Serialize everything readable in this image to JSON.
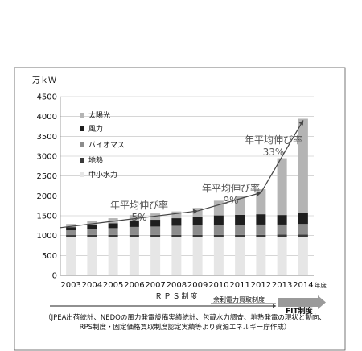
{
  "chart_data": {
    "type": "bar",
    "stacked": true,
    "title": "",
    "ylabel": "万ｋＷ",
    "xlabel_suffix": "年度",
    "ylim": [
      0,
      4500
    ],
    "yticks": [
      0,
      500,
      1000,
      1500,
      2000,
      2500,
      3000,
      3500,
      4000,
      4500
    ],
    "grid": true,
    "legend_position": "top-left (inside plot)",
    "categories": [
      "2003",
      "2004",
      "2005",
      "2006",
      "2007",
      "2008",
      "2009",
      "2010",
      "2011",
      "2012",
      "2013",
      "2014"
    ],
    "series": [
      {
        "name": "中小水力",
        "color": "#e6e6e6",
        "values": [
          960,
          965,
          965,
          965,
          965,
          965,
          965,
          965,
          965,
          965,
          970,
          970
        ]
      },
      {
        "name": "地熱",
        "color": "#3a3a3a",
        "values": [
          53,
          53,
          53,
          53,
          53,
          53,
          53,
          53,
          53,
          53,
          53,
          53
        ]
      },
      {
        "name": "バイオマス",
        "color": "#8c8c8c",
        "values": [
          120,
          140,
          170,
          200,
          210,
          230,
          240,
          250,
          255,
          260,
          255,
          270
        ]
      },
      {
        "name": "風力",
        "color": "#1e1e1e",
        "values": [
          80,
          100,
          120,
          150,
          170,
          190,
          210,
          240,
          250,
          260,
          240,
          280
        ]
      },
      {
        "name": "太陽光",
        "color": "#b4b4b4",
        "values": [
          80,
          100,
          130,
          150,
          160,
          170,
          230,
          370,
          480,
          630,
          1430,
          2370
        ]
      }
    ],
    "annotations": [
      {
        "text": "年平均伸び率\n5%"
      },
      {
        "text": "年平均伸び率\n9%"
      },
      {
        "text": "年平均伸び率\n33%"
      }
    ],
    "trend_arrows": [
      {
        "from": [
          "2003",
          1200
        ],
        "to": [
          "2009",
          1620
        ]
      },
      {
        "from": [
          "2009",
          1620
        ],
        "to": [
          "2012",
          2080
        ]
      },
      {
        "from": [
          "2012",
          2080
        ],
        "to": [
          "2014",
          3900
        ]
      }
    ]
  },
  "policy_bar": {
    "rps_label": "ＲＰＳ制度",
    "surplus_label": "余剰電力買取制度",
    "fit_label": "FIT制度"
  },
  "source_note": {
    "line1": "（JPEA出荷統計、NEDOの風力発電設備実績統計、包蔵水力調査、地熱発電の現状と動向、",
    "line2": "RPS制度・固定価格買取制度認定実績等より資源エネルギー庁作成）"
  }
}
